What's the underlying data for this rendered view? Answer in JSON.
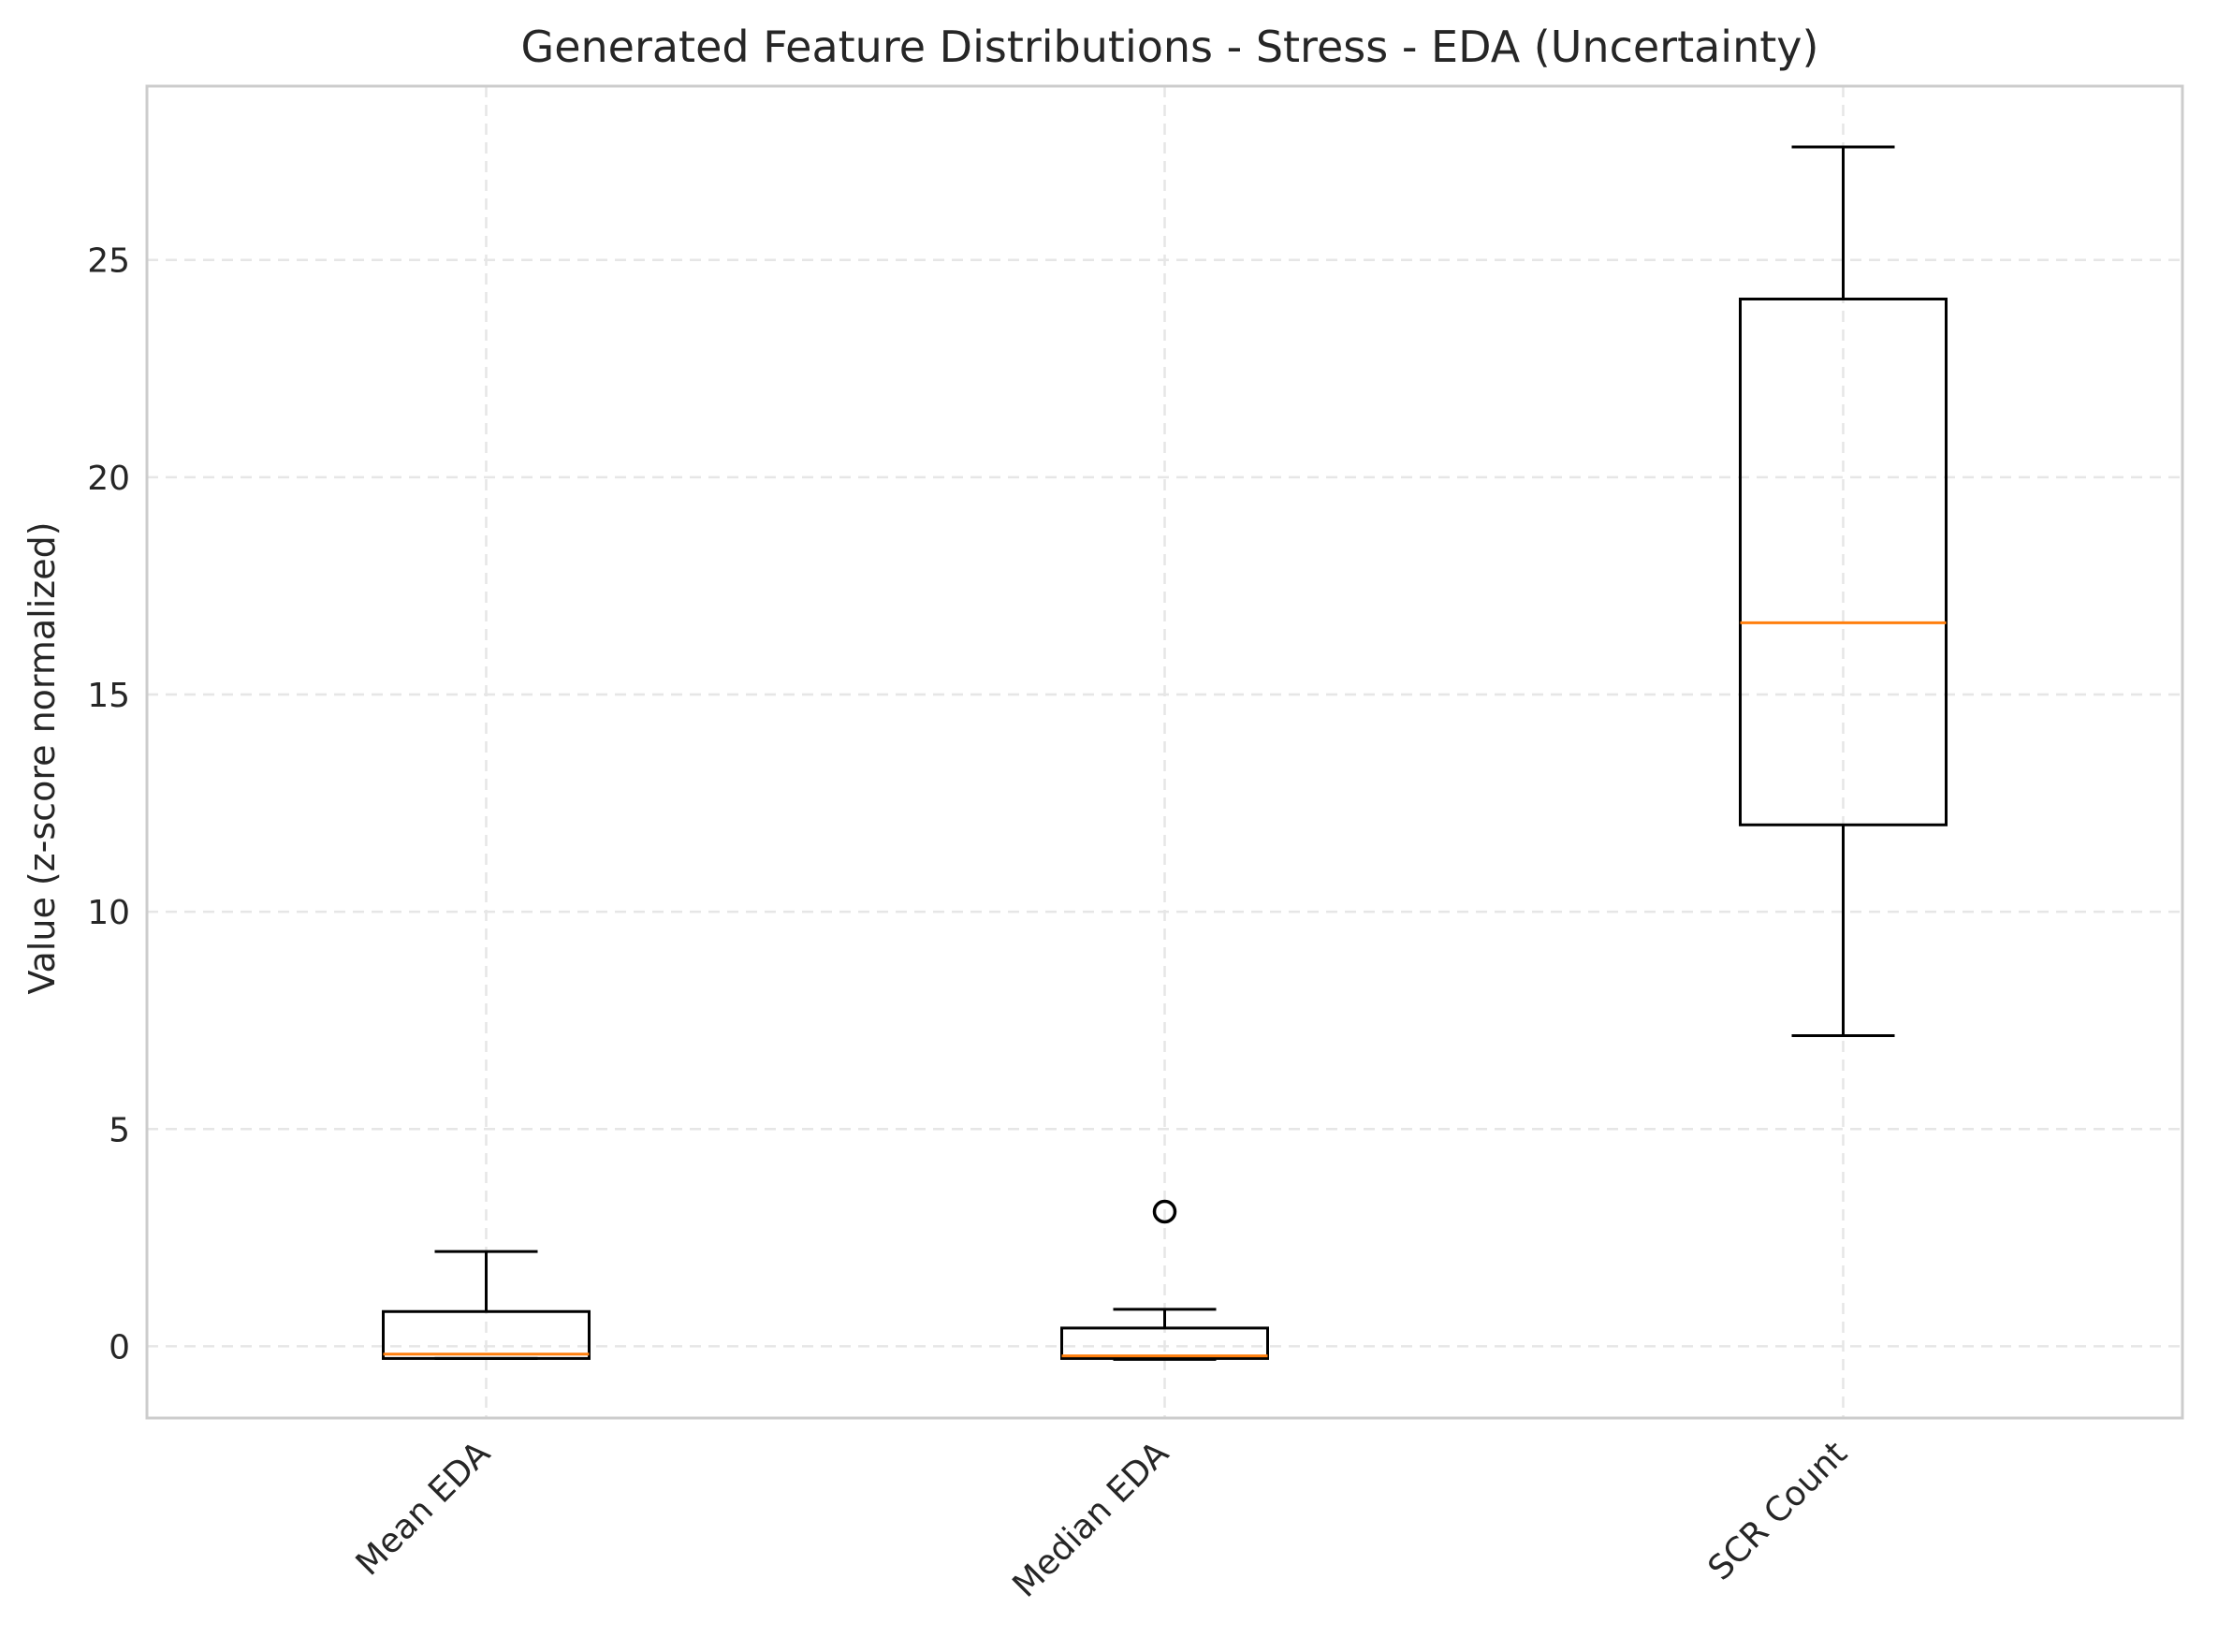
{
  "chart_data": {
    "type": "boxplot",
    "title": "Generated Feature Distributions - Stress - EDA (Uncertainty)",
    "xlabel": "",
    "ylabel": "Value (z-score normalized)",
    "ylim": [
      -1.65,
      29.0
    ],
    "yticks": [
      0,
      5,
      10,
      15,
      20,
      25
    ],
    "grid": true,
    "categories": [
      "Mean EDA",
      "Median EDA",
      "SCR Count"
    ],
    "boxes": [
      {
        "label": "Mean EDA",
        "whisker_low": -0.28,
        "q1": -0.28,
        "median": -0.18,
        "q3": 0.8,
        "whisker_high": 2.18,
        "outliers": []
      },
      {
        "label": "Median EDA",
        "whisker_low": -0.3,
        "q1": -0.28,
        "median": -0.22,
        "q3": 0.42,
        "whisker_high": 0.85,
        "outliers": [
          3.1
        ]
      },
      {
        "label": "SCR Count",
        "whisker_low": 7.15,
        "q1": 12.0,
        "median": 16.65,
        "q3": 24.1,
        "whisker_high": 27.6,
        "outliers": []
      }
    ],
    "colors": {
      "box": "#000000",
      "median": "#ff7f0e",
      "grid": "#e6e6e6",
      "frame": "#cccccc"
    }
  }
}
